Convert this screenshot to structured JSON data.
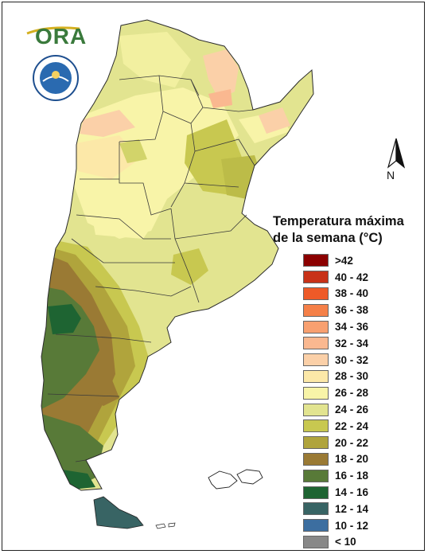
{
  "legend": {
    "title_line1": "Temperatura máxima",
    "title_line2": "de la semana (°C)",
    "items": [
      {
        "label": ">42",
        "color": "#8b0000"
      },
      {
        "label": "40 - 42",
        "color": "#c83218"
      },
      {
        "label": "38 - 40",
        "color": "#ee5a28"
      },
      {
        "label": "36 - 38",
        "color": "#f58048"
      },
      {
        "label": "34 - 36",
        "color": "#f8a070"
      },
      {
        "label": "32 - 34",
        "color": "#fab890"
      },
      {
        "label": "30 - 32",
        "color": "#fbd0a8"
      },
      {
        "label": "28 - 30",
        "color": "#fce8a8"
      },
      {
        "label": "26 - 28",
        "color": "#f8f4a8"
      },
      {
        "label": "24 - 26",
        "color": "#e2e490"
      },
      {
        "label": "22 - 24",
        "color": "#c8c850"
      },
      {
        "label": "20 - 22",
        "color": "#b0a43c"
      },
      {
        "label": "18 - 20",
        "color": "#9a7a34"
      },
      {
        "label": "16 - 18",
        "color": "#587a38"
      },
      {
        "label": "14 - 16",
        "color": "#1e6432"
      },
      {
        "label": "12 - 14",
        "color": "#386464"
      },
      {
        "label": "10 - 12",
        "color": "#3c6ea0"
      },
      {
        "label": "< 10",
        "color": "#888888"
      }
    ]
  },
  "logos": {
    "ora_text": "ORA"
  },
  "north_arrow": {
    "label": "N"
  }
}
